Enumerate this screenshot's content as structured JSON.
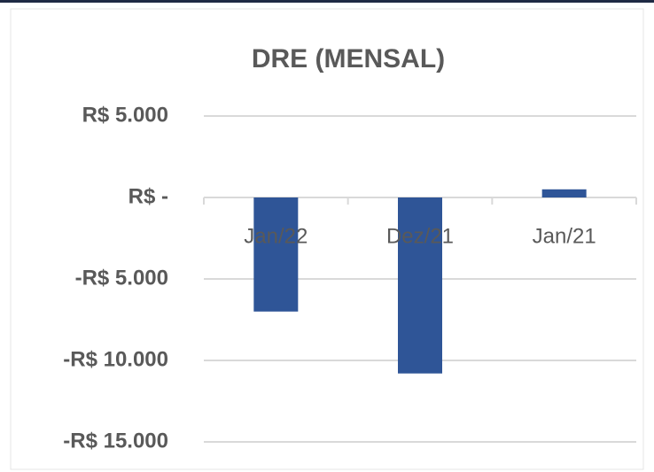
{
  "chart_data": {
    "type": "bar",
    "title": "DRE (MENSAL)",
    "categories": [
      "Jan/22",
      "Dez/21",
      "Jan/21"
    ],
    "values": [
      -7000,
      -10800,
      500
    ],
    "color": "#2f5597",
    "ylim": [
      -15000,
      5000
    ],
    "yticks": [
      {
        "value": 5000,
        "label": "R$ 5.000"
      },
      {
        "value": 0,
        "label": "R$ -"
      },
      {
        "value": -5000,
        "label": "-R$ 5.000"
      },
      {
        "value": -10000,
        "label": "-R$ 10.000"
      },
      {
        "value": -15000,
        "label": "-R$ 15.000"
      }
    ],
    "grid": true
  }
}
